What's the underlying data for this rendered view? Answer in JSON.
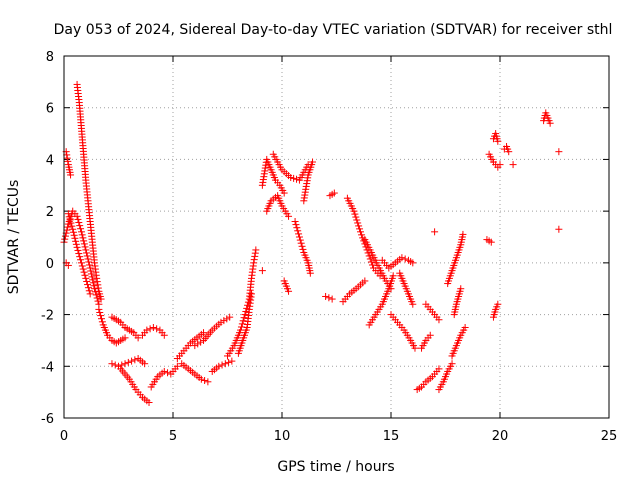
{
  "chart_data": {
    "type": "scatter",
    "title": "Day 053 of 2024, Sidereal Day-to-day VTEC variation (SDTVAR) for receiver sthl",
    "xlabel": "GPS time / hours",
    "ylabel": "SDTVAR / TECUs",
    "xlim": [
      0,
      25
    ],
    "ylim": [
      -6,
      8
    ],
    "x_ticks": [
      0,
      5,
      10,
      15,
      20,
      25
    ],
    "y_ticks": [
      -6,
      -4,
      -2,
      0,
      2,
      4,
      6,
      8
    ],
    "grid": true,
    "marker": "plus",
    "color": "#ff0000",
    "series": [
      {
        "name": "SDTVAR",
        "segments": [
          [
            [
              0.0,
              0.8
            ],
            [
              0.2,
              1.5
            ],
            [
              0.4,
              2.0
            ],
            [
              0.6,
              1.8
            ],
            [
              0.8,
              1.2
            ],
            [
              1.0,
              0.5
            ],
            [
              1.2,
              -0.2
            ],
            [
              1.4,
              -1.0
            ],
            [
              1.6,
              -1.6
            ]
          ],
          [
            [
              0.1,
              4.3
            ],
            [
              0.2,
              3.8
            ],
            [
              0.3,
              3.4
            ]
          ],
          [
            [
              0.6,
              6.9
            ],
            [
              0.7,
              6.2
            ],
            [
              0.8,
              5.2
            ],
            [
              0.9,
              4.2
            ],
            [
              1.0,
              3.2
            ],
            [
              1.1,
              2.4
            ],
            [
              1.2,
              1.6
            ],
            [
              1.3,
              0.8
            ],
            [
              1.4,
              0.0
            ],
            [
              1.5,
              -0.6
            ],
            [
              1.6,
              -1.1
            ],
            [
              1.7,
              -1.4
            ]
          ],
          [
            [
              0.2,
              1.9
            ],
            [
              0.4,
              1.3
            ],
            [
              0.6,
              0.6
            ],
            [
              0.8,
              0.0
            ],
            [
              1.0,
              -0.6
            ],
            [
              1.2,
              -1.2
            ]
          ],
          [
            [
              1.6,
              -1.8
            ],
            [
              1.8,
              -2.4
            ],
            [
              2.0,
              -2.8
            ],
            [
              2.2,
              -3.0
            ],
            [
              2.4,
              -3.1
            ],
            [
              2.6,
              -3.0
            ],
            [
              2.8,
              -2.9
            ]
          ],
          [
            [
              2.2,
              -2.1
            ],
            [
              2.4,
              -2.2
            ],
            [
              2.6,
              -2.3
            ],
            [
              2.8,
              -2.5
            ],
            [
              3.0,
              -2.6
            ],
            [
              3.2,
              -2.7
            ],
            [
              3.4,
              -2.9
            ]
          ],
          [
            [
              2.2,
              -3.9
            ],
            [
              2.5,
              -4.0
            ],
            [
              2.8,
              -3.9
            ],
            [
              3.1,
              -3.8
            ],
            [
              3.4,
              -3.7
            ],
            [
              3.7,
              -3.9
            ]
          ],
          [
            [
              2.6,
              -4.1
            ],
            [
              3.0,
              -4.5
            ],
            [
              3.3,
              -4.9
            ],
            [
              3.6,
              -5.2
            ],
            [
              3.9,
              -5.4
            ]
          ],
          [
            [
              3.6,
              -2.8
            ],
            [
              3.8,
              -2.6
            ],
            [
              4.1,
              -2.5
            ],
            [
              4.4,
              -2.6
            ],
            [
              4.6,
              -2.8
            ]
          ],
          [
            [
              4.0,
              -4.8
            ],
            [
              4.3,
              -4.4
            ],
            [
              4.6,
              -4.2
            ],
            [
              4.9,
              -4.3
            ],
            [
              5.2,
              -4.0
            ]
          ],
          [
            [
              5.2,
              -3.7
            ],
            [
              5.5,
              -3.4
            ],
            [
              5.8,
              -3.1
            ],
            [
              6.1,
              -2.9
            ],
            [
              6.4,
              -2.7
            ]
          ],
          [
            [
              5.4,
              -3.9
            ],
            [
              5.7,
              -4.1
            ],
            [
              6.0,
              -4.3
            ],
            [
              6.3,
              -4.5
            ],
            [
              6.6,
              -4.6
            ]
          ],
          [
            [
              6.0,
              -3.2
            ],
            [
              6.4,
              -3.0
            ],
            [
              6.8,
              -2.6
            ],
            [
              7.2,
              -2.3
            ],
            [
              7.6,
              -2.1
            ]
          ],
          [
            [
              6.8,
              -4.2
            ],
            [
              7.1,
              -4.0
            ],
            [
              7.4,
              -3.9
            ],
            [
              7.7,
              -3.8
            ]
          ],
          [
            [
              7.5,
              -3.6
            ],
            [
              7.8,
              -3.2
            ],
            [
              8.1,
              -2.6
            ],
            [
              8.3,
              -2.0
            ],
            [
              8.5,
              -1.4
            ],
            [
              8.6,
              -0.6
            ],
            [
              8.7,
              0.0
            ],
            [
              8.8,
              0.5
            ]
          ],
          [
            [
              8.0,
              -3.5
            ],
            [
              8.2,
              -3.0
            ],
            [
              8.4,
              -2.5
            ],
            [
              8.5,
              -1.8
            ],
            [
              8.6,
              -1.2
            ]
          ],
          [
            [
              9.1,
              3.0
            ],
            [
              9.3,
              4.0
            ],
            [
              9.5,
              3.6
            ],
            [
              9.7,
              3.2
            ],
            [
              9.9,
              3.0
            ],
            [
              10.1,
              2.7
            ]
          ],
          [
            [
              9.3,
              2.0
            ],
            [
              9.5,
              2.4
            ],
            [
              9.8,
              2.6
            ],
            [
              10.0,
              2.2
            ],
            [
              10.3,
              1.8
            ]
          ],
          [
            [
              9.6,
              4.2
            ],
            [
              10.0,
              3.6
            ],
            [
              10.4,
              3.3
            ],
            [
              10.8,
              3.2
            ],
            [
              11.2,
              3.8
            ]
          ],
          [
            [
              10.1,
              -0.7
            ],
            [
              10.3,
              -1.1
            ]
          ],
          [
            [
              10.6,
              1.6
            ],
            [
              10.8,
              1.0
            ],
            [
              11.0,
              0.4
            ],
            [
              11.2,
              0.0
            ],
            [
              11.3,
              -0.4
            ]
          ],
          [
            [
              11.0,
              2.4
            ],
            [
              11.2,
              3.4
            ],
            [
              11.4,
              3.9
            ]
          ],
          [
            [
              12.2,
              2.6
            ],
            [
              12.4,
              2.7
            ]
          ],
          [
            [
              12.0,
              -1.3
            ],
            [
              12.3,
              -1.4
            ]
          ],
          [
            [
              12.8,
              -1.5
            ],
            [
              13.1,
              -1.2
            ],
            [
              13.4,
              -1.0
            ],
            [
              13.8,
              -0.7
            ]
          ],
          [
            [
              13.0,
              2.5
            ],
            [
              13.3,
              2.0
            ],
            [
              13.6,
              1.2
            ],
            [
              13.9,
              0.5
            ],
            [
              14.2,
              -0.2
            ],
            [
              14.5,
              -0.5
            ]
          ],
          [
            [
              13.8,
              0.9
            ],
            [
              14.1,
              0.4
            ],
            [
              14.4,
              -0.1
            ],
            [
              14.7,
              -0.6
            ],
            [
              15.0,
              -1.0
            ]
          ],
          [
            [
              14.0,
              -2.4
            ],
            [
              14.3,
              -2.0
            ],
            [
              14.6,
              -1.6
            ],
            [
              14.9,
              -1.0
            ],
            [
              15.1,
              -0.5
            ]
          ],
          [
            [
              14.6,
              0.1
            ],
            [
              14.9,
              -0.2
            ],
            [
              15.2,
              0.0
            ],
            [
              15.5,
              0.2
            ],
            [
              15.8,
              0.1
            ],
            [
              16.0,
              0.0
            ]
          ],
          [
            [
              15.0,
              -2.0
            ],
            [
              15.3,
              -2.3
            ],
            [
              15.6,
              -2.6
            ],
            [
              15.9,
              -3.0
            ],
            [
              16.1,
              -3.3
            ]
          ],
          [
            [
              15.4,
              -0.4
            ],
            [
              15.6,
              -0.8
            ],
            [
              15.8,
              -1.2
            ],
            [
              16.0,
              -1.6
            ]
          ],
          [
            [
              16.2,
              -4.9
            ],
            [
              16.4,
              -4.8
            ],
            [
              16.6,
              -4.6
            ],
            [
              16.9,
              -4.4
            ],
            [
              17.2,
              -4.1
            ]
          ],
          [
            [
              16.4,
              -3.3
            ],
            [
              16.6,
              -3.0
            ],
            [
              16.8,
              -2.8
            ]
          ],
          [
            [
              16.6,
              -1.6
            ],
            [
              16.8,
              -1.8
            ],
            [
              17.0,
              -2.0
            ],
            [
              17.2,
              -2.2
            ]
          ],
          [
            [
              17.2,
              -4.9
            ],
            [
              17.4,
              -4.6
            ],
            [
              17.6,
              -4.2
            ],
            [
              17.8,
              -3.9
            ]
          ],
          [
            [
              17.6,
              -0.8
            ],
            [
              17.8,
              -0.3
            ],
            [
              18.0,
              0.2
            ],
            [
              18.2,
              0.7
            ],
            [
              18.3,
              1.1
            ]
          ],
          [
            [
              17.8,
              -3.6
            ],
            [
              18.0,
              -3.2
            ],
            [
              18.2,
              -2.8
            ],
            [
              18.4,
              -2.5
            ]
          ],
          [
            [
              17.9,
              -2.0
            ],
            [
              18.0,
              -1.6
            ],
            [
              18.1,
              -1.3
            ],
            [
              18.2,
              -1.0
            ]
          ],
          [
            [
              19.4,
              0.9
            ],
            [
              19.6,
              0.8
            ]
          ],
          [
            [
              19.7,
              -2.1
            ],
            [
              19.8,
              -1.8
            ],
            [
              19.9,
              -1.6
            ]
          ],
          [
            [
              19.5,
              4.2
            ],
            [
              19.7,
              3.9
            ],
            [
              19.9,
              3.7
            ],
            [
              20.0,
              3.8
            ]
          ],
          [
            [
              19.7,
              4.8
            ],
            [
              19.8,
              5.0
            ],
            [
              19.9,
              4.7
            ]
          ],
          [
            [
              20.2,
              4.4
            ],
            [
              20.3,
              4.5
            ],
            [
              20.4,
              4.3
            ]
          ],
          [
            [
              20.6,
              3.8
            ]
          ],
          [
            [
              22.0,
              5.5
            ],
            [
              22.1,
              5.8
            ],
            [
              22.2,
              5.6
            ],
            [
              22.3,
              5.4
            ]
          ],
          [
            [
              22.7,
              4.3
            ]
          ],
          [
            [
              22.7,
              1.3
            ]
          ],
          [
            [
              17.0,
              1.2
            ]
          ],
          [
            [
              9.1,
              -0.3
            ]
          ],
          [
            [
              0.1,
              0.0
            ],
            [
              0.2,
              -0.1
            ]
          ]
        ]
      }
    ]
  }
}
